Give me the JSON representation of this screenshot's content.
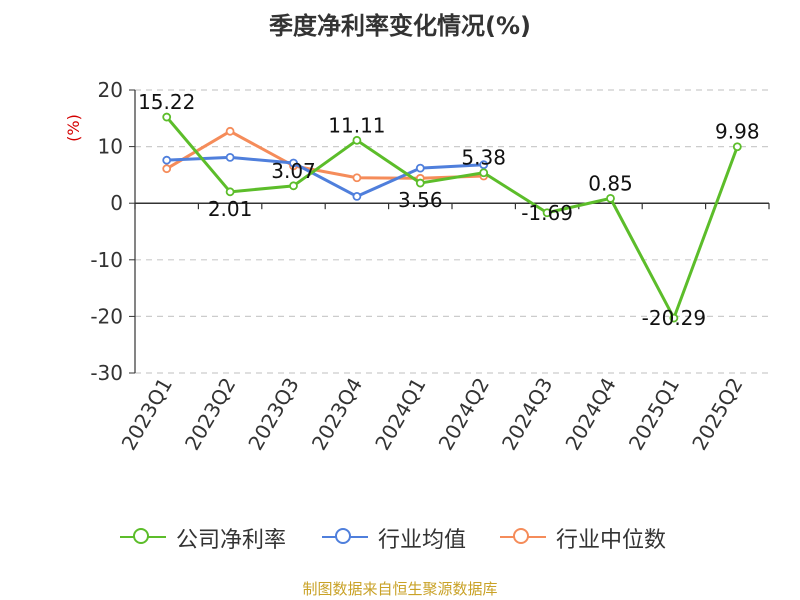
{
  "title": "季度净利率变化情况(%)",
  "source": "制图数据来自恒生聚源数据库",
  "colors": {
    "company": "#5cbd2a",
    "industry_avg": "#4f7fdc",
    "industry_median": "#f58c5a",
    "grid": "#cccccc",
    "axis": "#333333",
    "ylabel": "#d40000",
    "source": "#c9a227"
  },
  "chart_data": {
    "type": "line",
    "title": "季度净利率变化情况(%)",
    "ylabel": "(%)",
    "xlabel": "",
    "ylim": [
      -30,
      20
    ],
    "yticks": [
      "20",
      "10",
      "0",
      "-10",
      "-20",
      "-30"
    ],
    "ytick_values": [
      20,
      10,
      0,
      -10,
      -20,
      -30
    ],
    "grid": true,
    "legend_position": "bottom",
    "categories": [
      "2023Q1",
      "2023Q2",
      "2023Q3",
      "2023Q4",
      "2024Q1",
      "2024Q2",
      "2024Q3",
      "2024Q4",
      "2025Q1",
      "2025Q2"
    ],
    "series": [
      {
        "name": "公司净利率",
        "key": "company",
        "values": [
          15.22,
          2.01,
          3.07,
          11.11,
          3.56,
          5.38,
          -1.69,
          0.85,
          -20.29,
          9.98
        ],
        "labels": [
          "15.22",
          "2.01",
          "3.07",
          "11.11",
          "3.56",
          "5.38",
          "-1.69",
          "0.85",
          "-20.29",
          "9.98"
        ]
      },
      {
        "name": "行业均值",
        "key": "industry_avg",
        "values": [
          7.6,
          8.1,
          7.1,
          1.2,
          6.2,
          6.8,
          null,
          null,
          null,
          null
        ]
      },
      {
        "name": "行业中位数",
        "key": "industry_median",
        "values": [
          6.1,
          12.7,
          6.6,
          4.5,
          4.4,
          4.8,
          null,
          null,
          null,
          null
        ]
      }
    ]
  },
  "legend": [
    {
      "label": "公司净利率",
      "key": "company"
    },
    {
      "label": "行业均值",
      "key": "industry_avg"
    },
    {
      "label": "行业中位数",
      "key": "industry_median"
    }
  ]
}
